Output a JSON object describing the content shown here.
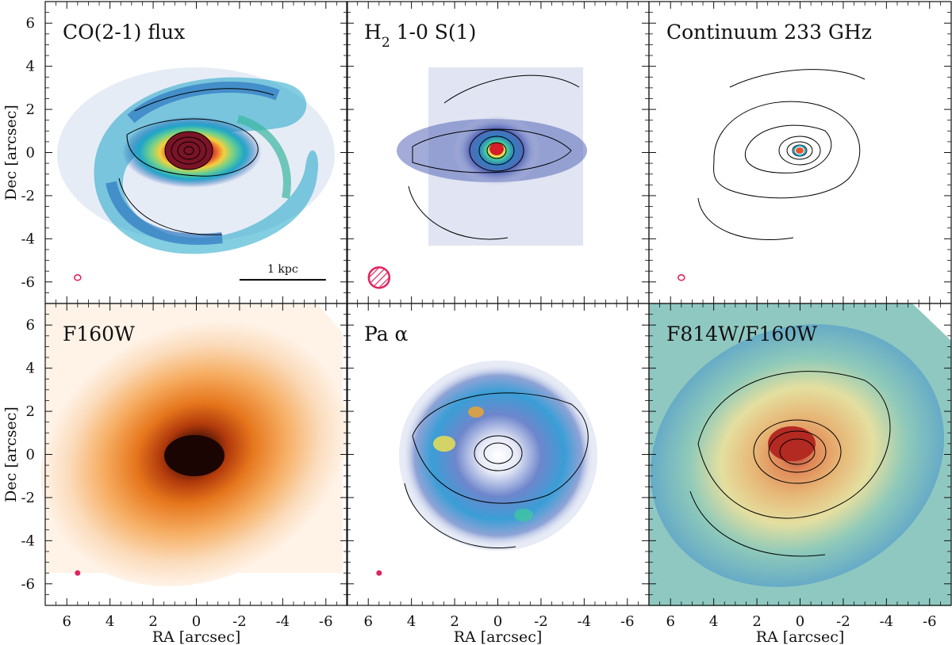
{
  "chart_data": {
    "type": "image_grid",
    "layout": {
      "rows": 2,
      "cols": 3
    },
    "xlabel": "RA [arcsec]",
    "ylabel": "Dec [arcsec]",
    "xlim": [
      7,
      -7
    ],
    "ylim": [
      -7,
      7
    ],
    "x_ticks": [
      6,
      4,
      2,
      0,
      -2,
      -4,
      -6
    ],
    "x_tick_labels": [
      "6",
      "4",
      "2",
      "0",
      "-2",
      "-4",
      "-6"
    ],
    "y_ticks": [
      6,
      4,
      2,
      0,
      -2,
      -4,
      -6
    ],
    "y_tick_labels": [
      "6",
      "4",
      "2",
      "0",
      "-2",
      "-4",
      "-6"
    ],
    "scale_bar": {
      "label": "1 kpc",
      "panel": 0,
      "x_from": -2,
      "x_to": -6,
      "y": -5.9
    },
    "panels": [
      {
        "title": "CO(2-1) flux",
        "title_sub": "",
        "title_rest": "",
        "colormap": "rainbow",
        "contours": true,
        "beam": "small",
        "beam_x": 5.5,
        "beam_y": -5.8
      },
      {
        "title": "H",
        "title_sub": "2",
        "title_rest": " 1-0 S(1)",
        "colormap": "blue-rainbow",
        "contours": true,
        "beam": "large-hatched",
        "beam_x": 5.5,
        "beam_y": -5.8
      },
      {
        "title": "Continuum 233 GHz",
        "title_sub": "",
        "title_rest": "",
        "colormap": "contours-only",
        "contours": true,
        "beam": "small",
        "beam_x": 5.5,
        "beam_y": -5.8
      },
      {
        "title": "F160W",
        "title_sub": "",
        "title_rest": "",
        "colormap": "orange",
        "contours": false,
        "beam": "dot",
        "beam_x": 5.5,
        "beam_y": -5.5
      },
      {
        "title": "Pa α",
        "title_sub": "",
        "title_rest": "",
        "colormap": "blue-rainbow",
        "contours": true,
        "beam": "dot",
        "beam_x": 5.5,
        "beam_y": -5.5
      },
      {
        "title": "F814W/F160W",
        "title_sub": "",
        "title_rest": "",
        "colormap": "spectral",
        "contours": true,
        "beam": "none"
      }
    ]
  },
  "colors": {
    "beam": "#e0245e",
    "contour": "#000000",
    "co_peak": "#8b1a2c",
    "orange_core": "#2a0c06",
    "orange_outer": "#fbe3cc",
    "blue_field": "#aab4dc",
    "spectral_field": "#8fc8c0"
  }
}
